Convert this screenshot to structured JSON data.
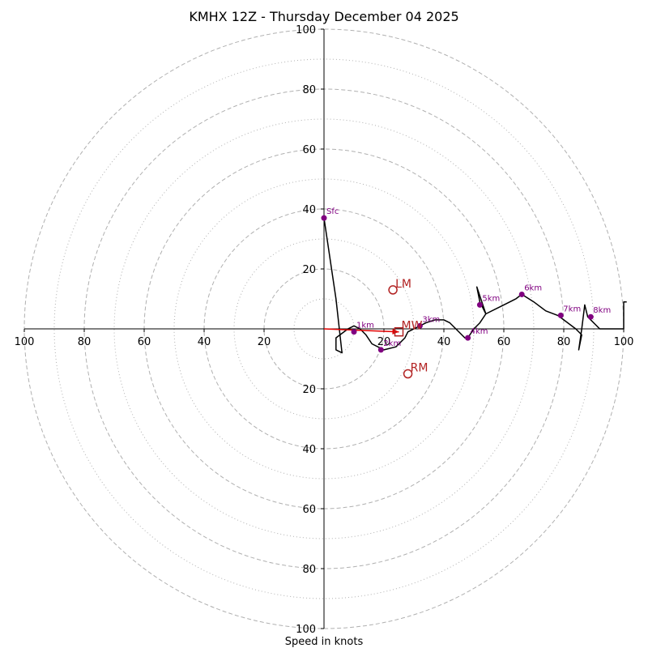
{
  "chart_data": {
    "type": "hodograph",
    "title": "KMHX 12Z - Thursday December 04 2025",
    "xlabel": "Speed in knots",
    "range": [
      -100,
      100
    ],
    "ring_major": [
      20,
      40,
      60,
      80,
      100
    ],
    "ring_minor": [
      10,
      30,
      50,
      70,
      90
    ],
    "x_tick_labels": [
      "100",
      "80",
      "60",
      "40",
      "20",
      "20",
      "40",
      "60",
      "80",
      "100"
    ],
    "y_tick_labels": [
      "100",
      "80",
      "60",
      "40",
      "20",
      "20",
      "40",
      "60",
      "80",
      "100"
    ],
    "colors": {
      "profile": "#000000",
      "height_marker": "#800080",
      "storm_motion": "#b22222",
      "mean_wind_arrow": "#e00000",
      "ring": "#b0b0b0",
      "axis": "#000000"
    },
    "profile": [
      [
        0,
        37
      ],
      [
        4,
        10
      ],
      [
        6,
        -8
      ],
      [
        4,
        -7
      ],
      [
        4,
        -3
      ],
      [
        8,
        0
      ],
      [
        10,
        1
      ],
      [
        12,
        0
      ],
      [
        14,
        -2
      ],
      [
        16,
        -5
      ],
      [
        20,
        -7
      ],
      [
        24,
        -6
      ],
      [
        27,
        -3
      ],
      [
        28,
        -1
      ],
      [
        30,
        0
      ],
      [
        32,
        1
      ],
      [
        34,
        2
      ],
      [
        37,
        3
      ],
      [
        40,
        3
      ],
      [
        42,
        2
      ],
      [
        44,
        0
      ],
      [
        47,
        -3
      ],
      [
        48,
        -3
      ],
      [
        50,
        0
      ],
      [
        52,
        2
      ],
      [
        54,
        5
      ],
      [
        53,
        7
      ],
      [
        52,
        9
      ],
      [
        51,
        14
      ],
      [
        54,
        5
      ],
      [
        60,
        8
      ],
      [
        64,
        10
      ],
      [
        66,
        11.5
      ],
      [
        70,
        9
      ],
      [
        74,
        6
      ],
      [
        78,
        4.5
      ],
      [
        80,
        3
      ],
      [
        84,
        0
      ],
      [
        86,
        -2
      ],
      [
        85,
        -7
      ],
      [
        86,
        0
      ],
      [
        87,
        8
      ],
      [
        88,
        4
      ],
      [
        92,
        0
      ],
      [
        100,
        0
      ],
      [
        100,
        9
      ],
      [
        101,
        9
      ]
    ],
    "height_points": [
      {
        "label": "Sfc",
        "u": 0,
        "v": 37
      },
      {
        "label": "1km",
        "u": 10,
        "v": -1
      },
      {
        "label": "2km",
        "u": 19,
        "v": -7
      },
      {
        "label": "3km",
        "u": 32,
        "v": 1
      },
      {
        "label": "4km",
        "u": 48,
        "v": -3
      },
      {
        "label": "5km",
        "u": 52,
        "v": 8
      },
      {
        "label": "6km",
        "u": 66,
        "v": 11.5
      },
      {
        "label": "7km",
        "u": 79,
        "v": 4.5
      },
      {
        "label": "8km",
        "u": 89,
        "v": 4
      }
    ],
    "storm_motions": [
      {
        "label": "LM",
        "u": 23,
        "v": 13,
        "marker": "circle"
      },
      {
        "label": "RM",
        "u": 28,
        "v": -15,
        "marker": "circle"
      },
      {
        "label": "MW",
        "u": 25,
        "v": -1,
        "marker": "square"
      }
    ],
    "mean_wind_vector": {
      "u": 25,
      "v": -1
    }
  }
}
